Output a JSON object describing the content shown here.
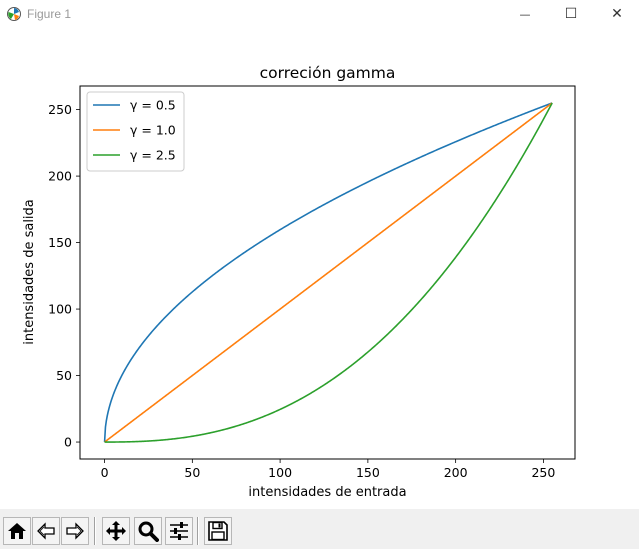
{
  "window": {
    "title": "Figure 1",
    "minimize_label": "—",
    "maximize_label": "☐",
    "close_label": "✕"
  },
  "toolbar": {
    "buttons": [
      {
        "name": "home-button",
        "icon": "home-icon"
      },
      {
        "name": "back-button",
        "icon": "back-arrow-icon"
      },
      {
        "name": "forward-button",
        "icon": "forward-arrow-icon"
      },
      {
        "name": "pan-button",
        "icon": "move-icon"
      },
      {
        "name": "zoom-button",
        "icon": "magnifier-icon"
      },
      {
        "name": "configure-subplots-button",
        "icon": "sliders-icon"
      },
      {
        "name": "save-button",
        "icon": "floppy-icon"
      }
    ]
  },
  "chart_data": {
    "type": "line",
    "title": "correción gamma",
    "xlabel": "intensidades de entrada",
    "ylabel": "intensidades de salida",
    "xlim": [
      -14,
      268
    ],
    "ylim": [
      -12.75,
      267.75
    ],
    "xticks": [
      0,
      50,
      100,
      150,
      200,
      250
    ],
    "yticks": [
      0,
      50,
      100,
      150,
      200,
      250
    ],
    "grid": false,
    "legend_position": "top-left",
    "x_range": [
      0,
      255
    ],
    "series": [
      {
        "name": "γ = 0.5",
        "gamma": 0.5,
        "color": "#1f77b4"
      },
      {
        "name": "γ = 1.0",
        "gamma": 1.0,
        "color": "#ff7f0e"
      },
      {
        "name": "γ = 2.5",
        "gamma": 2.5,
        "color": "#2ca02c"
      }
    ]
  }
}
